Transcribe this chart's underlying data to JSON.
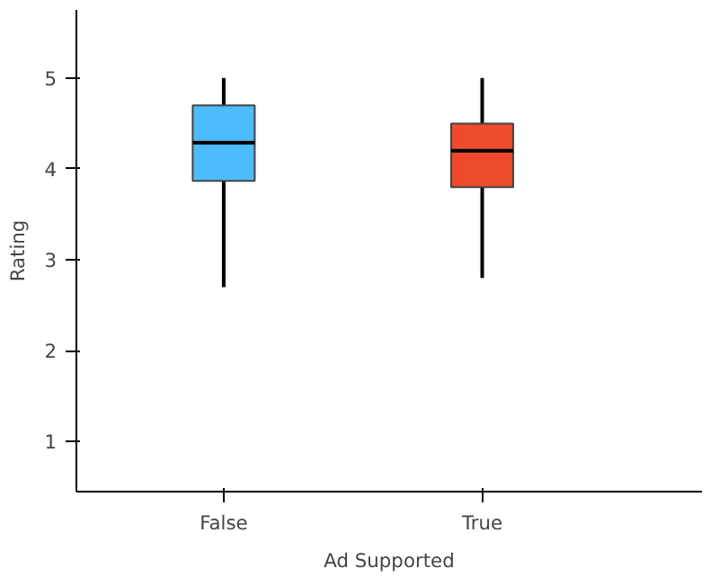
{
  "chart_data": {
    "type": "box",
    "xlabel": "Ad Supported",
    "ylabel": "Rating",
    "categories": [
      "False",
      "True"
    ],
    "ylim": [
      0.45,
      5.75
    ],
    "yticks": [
      1,
      2,
      3,
      4,
      5
    ],
    "grid": false,
    "series": [
      {
        "color": "#4cbcfc",
        "boxes": [
          {
            "low": 2.7,
            "q1": 3.87,
            "median": 4.29,
            "q3": 4.7,
            "high": 5.0
          },
          null
        ]
      },
      {
        "color": "#ee4a2e",
        "boxes": [
          null,
          {
            "low": 2.8,
            "q1": 3.8,
            "median": 4.2,
            "q3": 4.5,
            "high": 5.0
          }
        ]
      }
    ]
  }
}
